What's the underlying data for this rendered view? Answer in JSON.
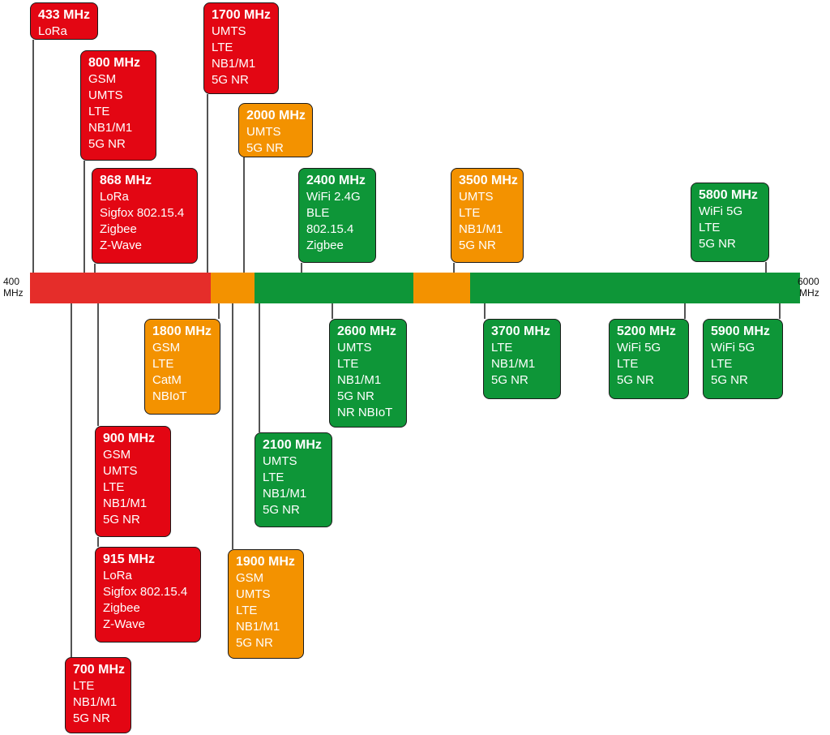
{
  "colors": {
    "red": "#e30613",
    "orange": "#f39200",
    "green": "#0e9638",
    "bar_red": "#e52d2a",
    "line": "#1a1a1a"
  },
  "axis": {
    "min_value": 400,
    "max_value": 6000,
    "min_label": "400",
    "max_label": "6000",
    "unit_label": "MHz"
  },
  "bar_segments": [
    {
      "color": "red",
      "from": 400,
      "to": 1800
    },
    {
      "color": "orange",
      "from": 1800,
      "to": 2000
    },
    {
      "color": "green",
      "from": 2000,
      "to": 3300
    },
    {
      "color": "orange",
      "from": 3300,
      "to": 3700
    },
    {
      "color": "green",
      "from": 3700,
      "to": 6000
    }
  ],
  "bands": [
    {
      "frequency": "433 MHz",
      "color": "red",
      "position": "above",
      "technologies": [
        "LoRa"
      ]
    },
    {
      "frequency": "800 MHz",
      "color": "red",
      "position": "above",
      "technologies": [
        "GSM",
        "UMTS",
        "LTE",
        "NB1/M1",
        "5G NR"
      ]
    },
    {
      "frequency": "868 MHz",
      "color": "red",
      "position": "above",
      "technologies": [
        "LoRa",
        "Sigfox 802.15.4",
        "Zigbee",
        "Z-Wave"
      ]
    },
    {
      "frequency": "1700 MHz",
      "color": "red",
      "position": "above",
      "technologies": [
        "UMTS",
        "LTE",
        "NB1/M1",
        "5G NR"
      ]
    },
    {
      "frequency": "2000 MHz",
      "color": "orange",
      "position": "above",
      "technologies": [
        "UMTS",
        "5G NR"
      ]
    },
    {
      "frequency": "2400 MHz",
      "color": "green",
      "position": "above",
      "technologies": [
        "WiFi 2.4G",
        "BLE",
        "802.15.4",
        "Zigbee"
      ]
    },
    {
      "frequency": "3500 MHz",
      "color": "orange",
      "position": "above",
      "technologies": [
        "UMTS",
        "LTE",
        "NB1/M1",
        "5G NR"
      ]
    },
    {
      "frequency": "5800 MHz",
      "color": "green",
      "position": "above",
      "technologies": [
        "WiFi 5G",
        "LTE",
        "5G NR"
      ]
    },
    {
      "frequency": "1800 MHz",
      "color": "orange",
      "position": "below",
      "technologies": [
        "GSM",
        "LTE",
        "CatM",
        "NBIoT"
      ]
    },
    {
      "frequency": "2600 MHz",
      "color": "green",
      "position": "below",
      "technologies": [
        "UMTS",
        "LTE",
        "NB1/M1",
        "5G NR",
        "NR NBIoT"
      ]
    },
    {
      "frequency": "3700 MHz",
      "color": "green",
      "position": "below",
      "technologies": [
        "LTE",
        "NB1/M1",
        "5G NR"
      ]
    },
    {
      "frequency": "5200 MHz",
      "color": "green",
      "position": "below",
      "technologies": [
        "WiFi 5G",
        "LTE",
        "5G NR"
      ]
    },
    {
      "frequency": "5900 MHz",
      "color": "green",
      "position": "below",
      "technologies": [
        "WiFi 5G",
        "LTE",
        "5G NR"
      ]
    },
    {
      "frequency": "2100 MHz",
      "color": "green",
      "position": "below",
      "technologies": [
        "UMTS",
        "LTE",
        "NB1/M1",
        "5G NR"
      ]
    },
    {
      "frequency": "900 MHz",
      "color": "red",
      "position": "below",
      "technologies": [
        "GSM",
        "UMTS",
        "LTE",
        "NB1/M1",
        "5G NR"
      ]
    },
    {
      "frequency": "1900 MHz",
      "color": "orange",
      "position": "below",
      "technologies": [
        "GSM",
        "UMTS",
        "LTE",
        "NB1/M1",
        "5G NR"
      ]
    },
    {
      "frequency": "915 MHz",
      "color": "red",
      "position": "below",
      "technologies": [
        "LoRa",
        "Sigfox 802.15.4",
        "Zigbee",
        "Z-Wave"
      ]
    },
    {
      "frequency": "700 MHz",
      "color": "red",
      "position": "below",
      "technologies": [
        "LTE",
        "NB1/M1",
        "5G NR"
      ]
    }
  ]
}
